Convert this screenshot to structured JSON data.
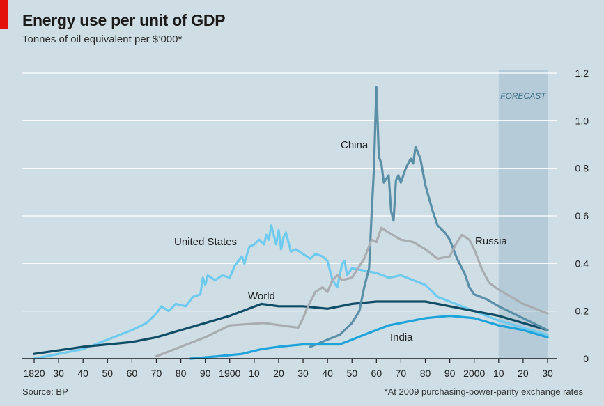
{
  "header": {
    "title": "Energy use per unit of GDP",
    "subtitle": "Tonnes of oil equivalent per $’000*"
  },
  "footer": {
    "source": "Source: BP",
    "footnote": "*At 2009 purchasing-power-parity exchange rates"
  },
  "colors": {
    "background": "#cfdde5",
    "accent_red": "#e3120b",
    "forecast_band": "#b5cbd7",
    "united_states": "#6fcaf0",
    "world": "#0f4d66",
    "china": "#5a8fa8",
    "russia": "#a9adb1",
    "india": "#1ea3db"
  },
  "chart_data": {
    "type": "line",
    "title": "Energy use per unit of GDP",
    "subtitle": "Tonnes of oil equivalent per $’000*",
    "xlabel": "",
    "ylabel": "",
    "xlim": [
      1820,
      2030
    ],
    "ylim": [
      0,
      1.2
    ],
    "grid": "horizontal",
    "y_axis_side": "right",
    "x_tick_labels": [
      "1820",
      "30",
      "40",
      "50",
      "60",
      "70",
      "80",
      "90",
      "1900",
      "10",
      "20",
      "30",
      "40",
      "50",
      "60",
      "70",
      "80",
      "90",
      "2000",
      "10",
      "20",
      "30"
    ],
    "y_tick_labels": [
      "0",
      "0.2",
      "0.4",
      "0.6",
      "0.8",
      "1.0",
      "1.2"
    ],
    "y_tick_values": [
      0,
      0.2,
      0.4,
      0.6,
      0.8,
      1.0,
      1.2
    ],
    "forecast": {
      "label": "FORECAST",
      "range": [
        2010,
        2030
      ]
    },
    "series": [
      {
        "name": "United States",
        "color_key": "united_states",
        "points": [
          [
            1820,
            0.0
          ],
          [
            1830,
            0.02
          ],
          [
            1840,
            0.04
          ],
          [
            1850,
            0.08
          ],
          [
            1860,
            0.12
          ],
          [
            1866,
            0.15
          ],
          [
            1870,
            0.19
          ],
          [
            1872,
            0.22
          ],
          [
            1875,
            0.2
          ],
          [
            1878,
            0.23
          ],
          [
            1882,
            0.22
          ],
          [
            1885,
            0.26
          ],
          [
            1888,
            0.27
          ],
          [
            1889,
            0.34
          ],
          [
            1890,
            0.31
          ],
          [
            1891,
            0.35
          ],
          [
            1894,
            0.33
          ],
          [
            1897,
            0.35
          ],
          [
            1900,
            0.34
          ],
          [
            1902,
            0.39
          ],
          [
            1905,
            0.43
          ],
          [
            1906,
            0.4
          ],
          [
            1908,
            0.47
          ],
          [
            1910,
            0.48
          ],
          [
            1912,
            0.5
          ],
          [
            1914,
            0.48
          ],
          [
            1915,
            0.52
          ],
          [
            1916,
            0.5
          ],
          [
            1917,
            0.56
          ],
          [
            1918,
            0.52
          ],
          [
            1919,
            0.48
          ],
          [
            1920,
            0.54
          ],
          [
            1921,
            0.46
          ],
          [
            1922,
            0.51
          ],
          [
            1923,
            0.53
          ],
          [
            1925,
            0.45
          ],
          [
            1927,
            0.46
          ],
          [
            1930,
            0.44
          ],
          [
            1933,
            0.42
          ],
          [
            1935,
            0.44
          ],
          [
            1938,
            0.43
          ],
          [
            1940,
            0.41
          ],
          [
            1942,
            0.33
          ],
          [
            1944,
            0.3
          ],
          [
            1946,
            0.4
          ],
          [
            1947,
            0.41
          ],
          [
            1948,
            0.35
          ],
          [
            1950,
            0.38
          ],
          [
            1955,
            0.37
          ],
          [
            1960,
            0.36
          ],
          [
            1965,
            0.34
          ],
          [
            1970,
            0.35
          ],
          [
            1975,
            0.33
          ],
          [
            1980,
            0.31
          ],
          [
            1985,
            0.26
          ],
          [
            1990,
            0.24
          ],
          [
            2000,
            0.2
          ],
          [
            2010,
            0.16
          ],
          [
            2020,
            0.13
          ],
          [
            2030,
            0.1
          ]
        ]
      },
      {
        "name": "World",
        "color_key": "world",
        "points": [
          [
            1820,
            0.02
          ],
          [
            1840,
            0.05
          ],
          [
            1860,
            0.07
          ],
          [
            1870,
            0.09
          ],
          [
            1880,
            0.12
          ],
          [
            1890,
            0.15
          ],
          [
            1900,
            0.18
          ],
          [
            1913,
            0.23
          ],
          [
            1920,
            0.22
          ],
          [
            1930,
            0.22
          ],
          [
            1940,
            0.21
          ],
          [
            1950,
            0.23
          ],
          [
            1960,
            0.24
          ],
          [
            1970,
            0.24
          ],
          [
            1980,
            0.24
          ],
          [
            1990,
            0.22
          ],
          [
            2000,
            0.2
          ],
          [
            2010,
            0.18
          ],
          [
            2020,
            0.15
          ],
          [
            2030,
            0.12
          ]
        ]
      },
      {
        "name": "China",
        "color_key": "china",
        "points": [
          [
            1933,
            0.05
          ],
          [
            1940,
            0.08
          ],
          [
            1945,
            0.1
          ],
          [
            1950,
            0.15
          ],
          [
            1953,
            0.2
          ],
          [
            1955,
            0.3
          ],
          [
            1957,
            0.38
          ],
          [
            1958,
            0.6
          ],
          [
            1959,
            0.8
          ],
          [
            1960,
            1.14
          ],
          [
            1961,
            0.85
          ],
          [
            1962,
            0.82
          ],
          [
            1963,
            0.74
          ],
          [
            1965,
            0.77
          ],
          [
            1966,
            0.62
          ],
          [
            1967,
            0.58
          ],
          [
            1968,
            0.75
          ],
          [
            1969,
            0.77
          ],
          [
            1970,
            0.74
          ],
          [
            1972,
            0.8
          ],
          [
            1974,
            0.84
          ],
          [
            1975,
            0.82
          ],
          [
            1976,
            0.89
          ],
          [
            1978,
            0.84
          ],
          [
            1980,
            0.73
          ],
          [
            1983,
            0.62
          ],
          [
            1985,
            0.56
          ],
          [
            1988,
            0.53
          ],
          [
            1990,
            0.5
          ],
          [
            1993,
            0.42
          ],
          [
            1996,
            0.36
          ],
          [
            1998,
            0.3
          ],
          [
            2000,
            0.27
          ],
          [
            2005,
            0.25
          ],
          [
            2010,
            0.22
          ],
          [
            2020,
            0.17
          ],
          [
            2030,
            0.12
          ]
        ]
      },
      {
        "name": "Russia",
        "color_key": "russia",
        "points": [
          [
            1870,
            0.01
          ],
          [
            1880,
            0.05
          ],
          [
            1890,
            0.09
          ],
          [
            1900,
            0.14
          ],
          [
            1914,
            0.15
          ],
          [
            1928,
            0.13
          ],
          [
            1930,
            0.17
          ],
          [
            1932,
            0.22
          ],
          [
            1935,
            0.28
          ],
          [
            1938,
            0.3
          ],
          [
            1940,
            0.28
          ],
          [
            1942,
            0.33
          ],
          [
            1944,
            0.35
          ],
          [
            1946,
            0.33
          ],
          [
            1950,
            0.34
          ],
          [
            1955,
            0.42
          ],
          [
            1958,
            0.5
          ],
          [
            1960,
            0.49
          ],
          [
            1962,
            0.55
          ],
          [
            1965,
            0.53
          ],
          [
            1970,
            0.5
          ],
          [
            1975,
            0.49
          ],
          [
            1980,
            0.46
          ],
          [
            1985,
            0.42
          ],
          [
            1990,
            0.43
          ],
          [
            1993,
            0.49
          ],
          [
            1995,
            0.52
          ],
          [
            1998,
            0.5
          ],
          [
            2000,
            0.46
          ],
          [
            2003,
            0.38
          ],
          [
            2006,
            0.32
          ],
          [
            2010,
            0.29
          ],
          [
            2020,
            0.23
          ],
          [
            2030,
            0.19
          ]
        ]
      },
      {
        "name": "India",
        "color_key": "india",
        "points": [
          [
            1884,
            0.0
          ],
          [
            1895,
            0.01
          ],
          [
            1905,
            0.02
          ],
          [
            1913,
            0.04
          ],
          [
            1920,
            0.05
          ],
          [
            1930,
            0.06
          ],
          [
            1940,
            0.06
          ],
          [
            1945,
            0.06
          ],
          [
            1950,
            0.08
          ],
          [
            1955,
            0.1
          ],
          [
            1960,
            0.12
          ],
          [
            1965,
            0.14
          ],
          [
            1970,
            0.15
          ],
          [
            1975,
            0.16
          ],
          [
            1980,
            0.17
          ],
          [
            1990,
            0.18
          ],
          [
            2000,
            0.17
          ],
          [
            2010,
            0.14
          ],
          [
            2020,
            0.12
          ],
          [
            2030,
            0.09
          ]
        ]
      }
    ],
    "series_labels": [
      {
        "text": "United States",
        "color_key": "united_states"
      },
      {
        "text": "World",
        "color_key": "world"
      },
      {
        "text": "China",
        "color_key": "china"
      },
      {
        "text": "Russia",
        "color_key": "russia"
      },
      {
        "text": "India",
        "color_key": "india"
      }
    ]
  }
}
